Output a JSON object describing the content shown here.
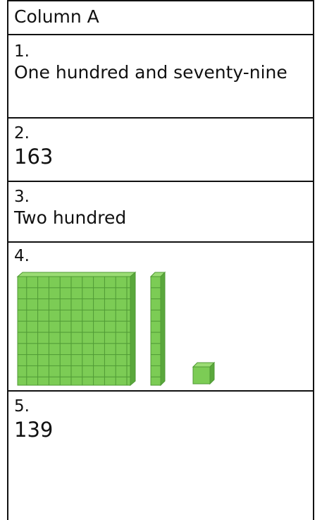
{
  "table": {
    "header": "Column A",
    "rows": [
      {
        "number": "1.",
        "text": "One hundred and seventy-nine"
      },
      {
        "number": "2.",
        "text": "163"
      },
      {
        "number": "3.",
        "text": "Two hundred"
      },
      {
        "number": "4."
      },
      {
        "number": "5.",
        "text": "139"
      }
    ]
  }
}
